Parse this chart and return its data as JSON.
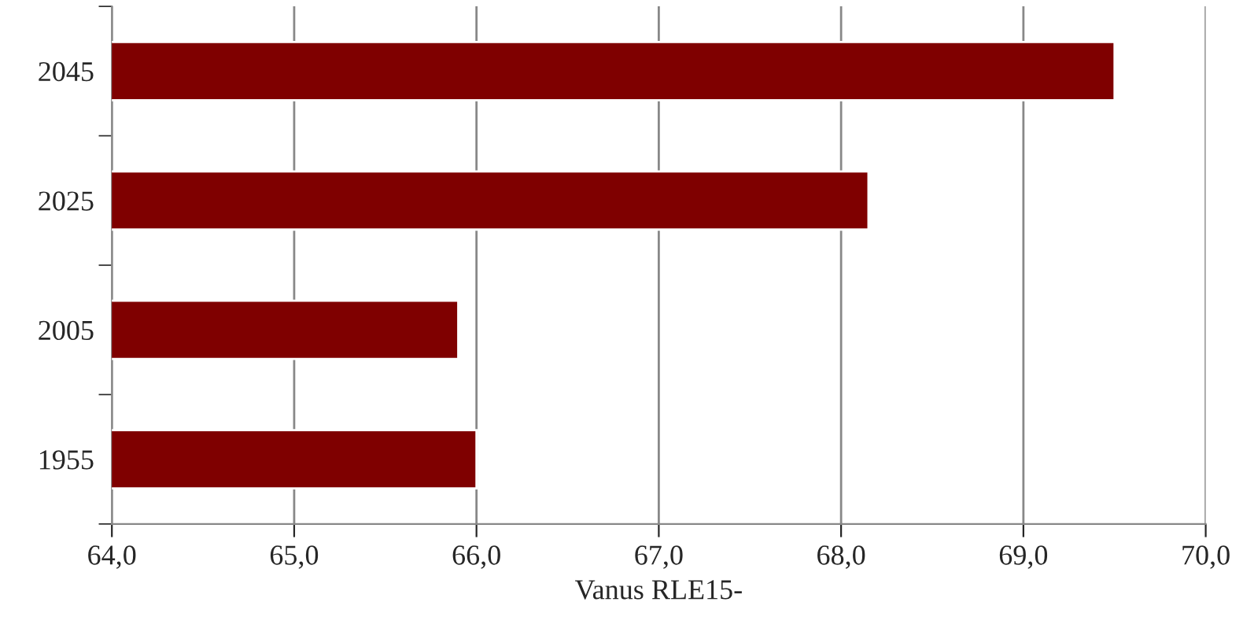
{
  "chart_data": {
    "type": "bar",
    "orientation": "horizontal",
    "xlabel": "Vanus RLE15-",
    "categories": [
      "2045",
      "2025",
      "2005",
      "1955"
    ],
    "values": [
      69.5,
      68.15,
      65.9,
      66.0
    ],
    "color": "#7f0000",
    "xlim": [
      64,
      70
    ],
    "xticks": [
      {
        "value": 64,
        "label": "64,0"
      },
      {
        "value": 65,
        "label": "65,0"
      },
      {
        "value": 66,
        "label": "66,0"
      },
      {
        "value": 67,
        "label": "67,0"
      },
      {
        "value": 68,
        "label": "68,0"
      },
      {
        "value": 69,
        "label": "69,0"
      },
      {
        "value": 70,
        "label": "70,0"
      }
    ],
    "grid": "x",
    "legend": false
  }
}
